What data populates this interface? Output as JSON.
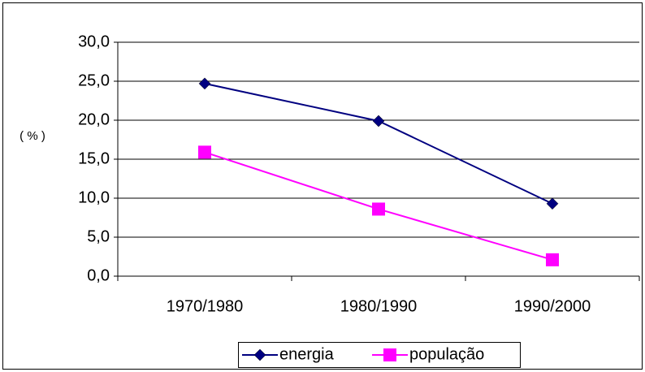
{
  "chart_data": {
    "type": "line",
    "y_label": "( % )",
    "categories": [
      "1970/1980",
      "1980/1990",
      "1990/2000"
    ],
    "series": [
      {
        "name": "energia",
        "color": "#000080",
        "marker": "diamond",
        "values": [
          24.7,
          19.9,
          9.3
        ]
      },
      {
        "name": "população",
        "color": "#ff00ff",
        "marker": "square",
        "values": [
          15.9,
          8.6,
          2.1
        ]
      }
    ],
    "ylim": [
      0,
      30
    ],
    "yticks": [
      {
        "value": 0,
        "label": "0,0"
      },
      {
        "value": 5,
        "label": "5,0"
      },
      {
        "value": 10,
        "label": "10,0"
      },
      {
        "value": 15,
        "label": "15,0"
      },
      {
        "value": 20,
        "label": "20,0"
      },
      {
        "value": 25,
        "label": "25,0"
      },
      {
        "value": 30,
        "label": "30,0"
      }
    ],
    "grid": true,
    "legend": "bottom"
  }
}
